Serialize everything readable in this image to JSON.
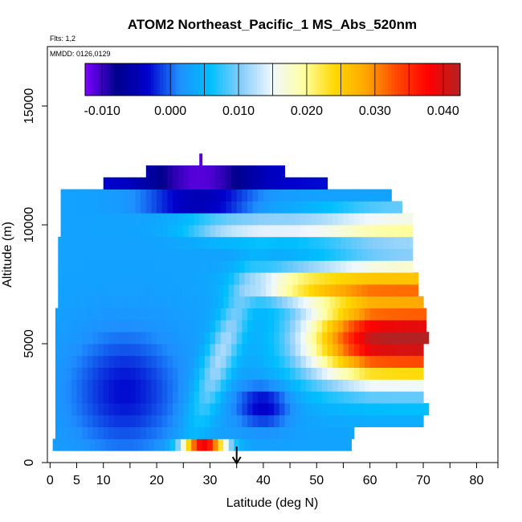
{
  "chart_data": {
    "type": "heatmap",
    "title": "ATOM2 Northeast_Pacific_1 MS_Abs_520nm",
    "flights_note": "Flts: 1,2",
    "dates_note": "MMDD: 0126,0129",
    "xlabel": "Latitude (deg N)",
    "ylabel": "Altitude (m)",
    "xlim": [
      -0.5,
      84
    ],
    "ylim": [
      0,
      17500
    ],
    "x_ticks": [
      0,
      5,
      10,
      20,
      30,
      40,
      50,
      60,
      70,
      80
    ],
    "x_tick_marks": [
      0,
      5,
      10,
      15,
      20,
      25,
      30,
      35,
      40,
      45,
      50,
      55,
      60,
      65,
      70,
      75,
      80,
      84
    ],
    "y_ticks": [
      0,
      5000,
      10000,
      15000
    ],
    "grid": false,
    "marker_latitude": 35,
    "colorbar": {
      "placement": "top",
      "min": -0.0125,
      "max": 0.0425,
      "labels": [
        -0.01,
        0.0,
        0.01,
        0.02,
        0.03,
        0.04
      ],
      "label_text": [
        "-0.010",
        "0.000",
        "0.010",
        "0.020",
        "0.030",
        "0.040"
      ],
      "boundaries": [
        -0.01,
        -0.005,
        0.0,
        0.005,
        0.01,
        0.015,
        0.02,
        0.025,
        0.03,
        0.035,
        0.04
      ],
      "colors": [
        "#7f00ff",
        "#00008b",
        "#0000cd",
        "#1e90ff",
        "#00bfff",
        "#87cefa",
        "#f0f8ff",
        "#ffffa0",
        "#ffd700",
        "#ffa500",
        "#ff4500",
        "#ff0000",
        "#b22222"
      ]
    },
    "rows": [
      {
        "alt": [
          500,
          1000
        ],
        "lat": [
          0.5,
          56.5
        ]
      },
      {
        "alt": [
          1000,
          1500
        ],
        "lat": [
          1,
          57
        ]
      },
      {
        "alt": [
          1500,
          2000
        ],
        "lat": [
          1,
          70
        ]
      },
      {
        "alt": [
          2000,
          2500
        ],
        "lat": [
          1,
          71
        ]
      },
      {
        "alt": [
          2500,
          3000
        ],
        "lat": [
          1,
          70
        ]
      },
      {
        "alt": [
          3000,
          3500
        ],
        "lat": [
          1,
          70
        ]
      },
      {
        "alt": [
          3500,
          4000
        ],
        "lat": [
          1,
          70
        ]
      },
      {
        "alt": [
          4000,
          4500
        ],
        "lat": [
          1,
          70
        ]
      },
      {
        "alt": [
          4500,
          5000
        ],
        "lat": [
          1,
          70
        ]
      },
      {
        "alt": [
          5000,
          5500
        ],
        "lat": [
          1,
          71
        ]
      },
      {
        "alt": [
          5500,
          6000
        ],
        "lat": [
          1,
          70.5
        ]
      },
      {
        "alt": [
          6000,
          6500
        ],
        "lat": [
          1,
          70.5
        ]
      },
      {
        "alt": [
          6500,
          7000
        ],
        "lat": [
          1.5,
          70
        ]
      },
      {
        "alt": [
          7000,
          7500
        ],
        "lat": [
          1.5,
          69
        ]
      },
      {
        "alt": [
          7500,
          8000
        ],
        "lat": [
          1.5,
          69
        ]
      },
      {
        "alt": [
          8000,
          8500
        ],
        "lat": [
          1.5,
          68
        ]
      },
      {
        "alt": [
          8500,
          9000
        ],
        "lat": [
          1.5,
          68
        ]
      },
      {
        "alt": [
          9000,
          9500
        ],
        "lat": [
          1.5,
          68
        ]
      },
      {
        "alt": [
          9500,
          10000
        ],
        "lat": [
          2,
          68
        ]
      },
      {
        "alt": [
          10000,
          10500
        ],
        "lat": [
          2,
          68
        ]
      },
      {
        "alt": [
          10500,
          11000
        ],
        "lat": [
          2,
          66
        ]
      },
      {
        "alt": [
          11000,
          11500
        ],
        "lat": [
          2,
          64
        ]
      },
      {
        "alt": [
          11500,
          12000
        ],
        "lat": [
          10,
          52
        ]
      },
      {
        "alt": [
          12000,
          12500
        ],
        "lat": [
          18,
          44
        ]
      },
      {
        "alt": [
          12500,
          13000
        ],
        "lat": [
          28,
          28.5
        ]
      }
    ]
  }
}
